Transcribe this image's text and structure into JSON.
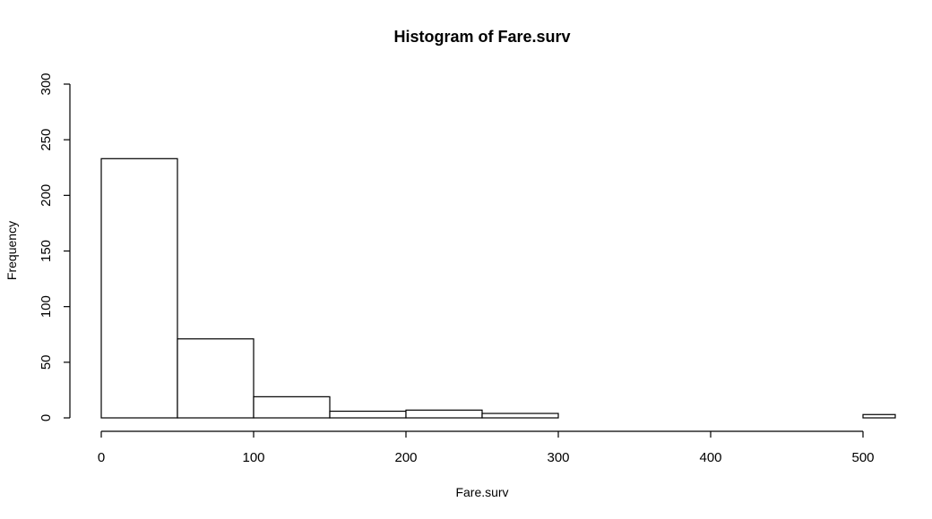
{
  "chart_data": {
    "type": "bar",
    "title": "Histogram of Fare.surv",
    "xlabel": "Fare.surv",
    "ylabel": "Frequency",
    "xlim": [
      0,
      520
    ],
    "ylim": [
      0,
      300
    ],
    "x_ticks": [
      0,
      100,
      200,
      300,
      400,
      500
    ],
    "y_ticks": [
      0,
      50,
      100,
      150,
      200,
      250,
      300
    ],
    "bins": [
      {
        "start": 0,
        "end": 50,
        "count": 233
      },
      {
        "start": 50,
        "end": 100,
        "count": 71
      },
      {
        "start": 100,
        "end": 150,
        "count": 19
      },
      {
        "start": 150,
        "end": 200,
        "count": 6
      },
      {
        "start": 200,
        "end": 250,
        "count": 7
      },
      {
        "start": 250,
        "end": 300,
        "count": 4
      },
      {
        "start": 300,
        "end": 350,
        "count": 0
      },
      {
        "start": 350,
        "end": 400,
        "count": 0
      },
      {
        "start": 400,
        "end": 450,
        "count": 0
      },
      {
        "start": 450,
        "end": 500,
        "count": 0
      },
      {
        "start": 500,
        "end": 550,
        "count": 3
      }
    ],
    "grid": false,
    "legend": "none"
  }
}
